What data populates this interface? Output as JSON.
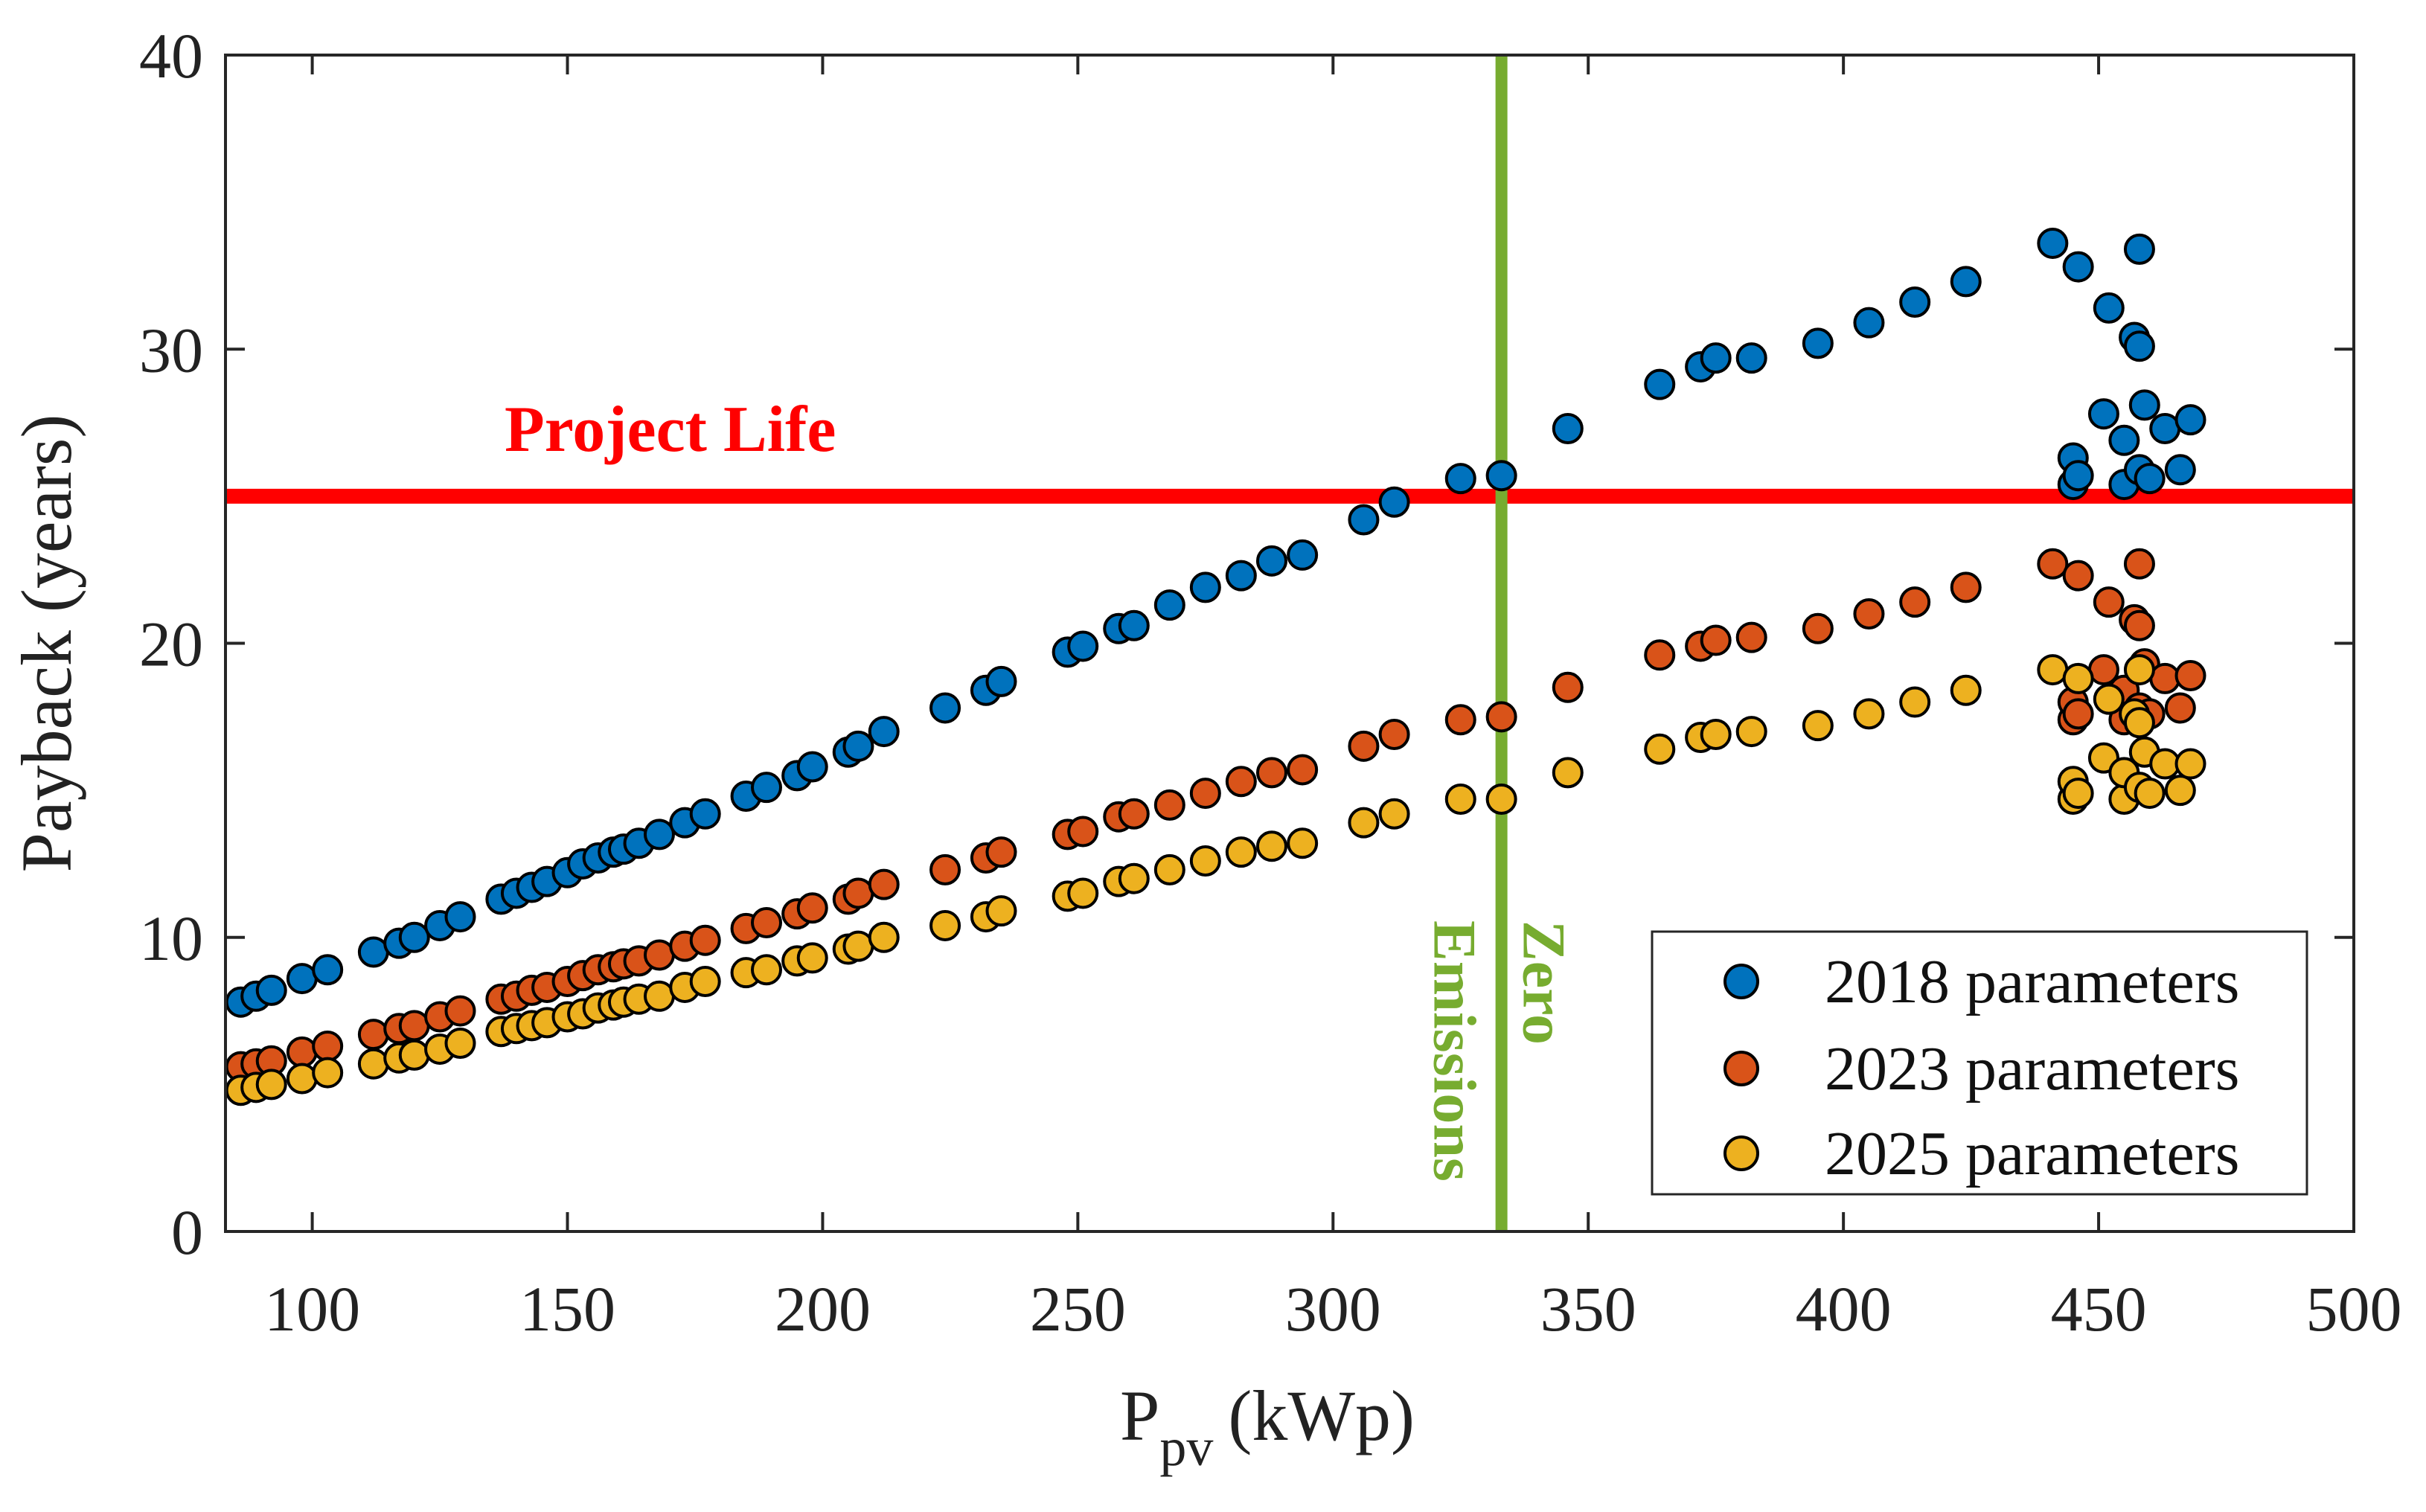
{
  "chart_data": {
    "type": "scatter",
    "xlabel_main": "P",
    "xlabel_sub": "pv",
    "xlabel_unit": "(kWp)",
    "ylabel": "Payback (years)",
    "xlim": [
      83,
      500
    ],
    "ylim": [
      0,
      40
    ],
    "xticks": [
      100,
      150,
      200,
      250,
      300,
      350,
      400,
      450,
      500
    ],
    "yticks": [
      0,
      10,
      20,
      30,
      40
    ],
    "grid": false,
    "legend_position": "bottom-right",
    "reference_lines": [
      {
        "orientation": "horizontal",
        "value": 25,
        "label": "Project Life",
        "color": "#ff0000"
      },
      {
        "orientation": "vertical",
        "value": 333,
        "label_line1": "Zero",
        "label_line2": "Emissions",
        "color": "#77ac30"
      }
    ],
    "series": [
      {
        "name": "2018 parameters",
        "color": "#0072bd",
        "points": [
          [
            86,
            7.8
          ],
          [
            89,
            8.0
          ],
          [
            92,
            8.2
          ],
          [
            98,
            8.6
          ],
          [
            103,
            8.9
          ],
          [
            112,
            9.5
          ],
          [
            117,
            9.8
          ],
          [
            120,
            10.0
          ],
          [
            125,
            10.4
          ],
          [
            129,
            10.7
          ],
          [
            137,
            11.3
          ],
          [
            140,
            11.5
          ],
          [
            143,
            11.7
          ],
          [
            146,
            11.9
          ],
          [
            150,
            12.2
          ],
          [
            153,
            12.5
          ],
          [
            156,
            12.7
          ],
          [
            159,
            12.9
          ],
          [
            161,
            13.0
          ],
          [
            164,
            13.2
          ],
          [
            168,
            13.5
          ],
          [
            173,
            13.9
          ],
          [
            177,
            14.2
          ],
          [
            185,
            14.8
          ],
          [
            189,
            15.1
          ],
          [
            195,
            15.5
          ],
          [
            198,
            15.8
          ],
          [
            205,
            16.3
          ],
          [
            207,
            16.5
          ],
          [
            212,
            17.0
          ],
          [
            224,
            17.8
          ],
          [
            232,
            18.4
          ],
          [
            235,
            18.7
          ],
          [
            248,
            19.7
          ],
          [
            251,
            19.9
          ],
          [
            258,
            20.5
          ],
          [
            261,
            20.6
          ],
          [
            268,
            21.3
          ],
          [
            275,
            21.9
          ],
          [
            282,
            22.3
          ],
          [
            288,
            22.8
          ],
          [
            294,
            23.0
          ],
          [
            306,
            24.2
          ],
          [
            312,
            24.8
          ],
          [
            325,
            25.6
          ],
          [
            333,
            25.7
          ],
          [
            346,
            27.3
          ],
          [
            364,
            28.8
          ],
          [
            372,
            29.4
          ],
          [
            375,
            29.7
          ],
          [
            382,
            29.7
          ],
          [
            395,
            30.2
          ],
          [
            405,
            30.9
          ],
          [
            414,
            31.6
          ],
          [
            424,
            32.3
          ],
          [
            441,
            33.6
          ],
          [
            445,
            25.4
          ],
          [
            445,
            26.3
          ],
          [
            446,
            25.7
          ],
          [
            446,
            32.8
          ],
          [
            451,
            27.8
          ],
          [
            452,
            31.4
          ],
          [
            455,
            25.4
          ],
          [
            455,
            26.9
          ],
          [
            457,
            30.4
          ],
          [
            458,
            25.9
          ],
          [
            458,
            30.1
          ],
          [
            458,
            33.4
          ],
          [
            459,
            28.1
          ],
          [
            460,
            25.6
          ],
          [
            463,
            27.3
          ],
          [
            466,
            25.9
          ],
          [
            468,
            27.6
          ]
        ]
      },
      {
        "name": "2023 parameters",
        "color": "#d95319",
        "points": [
          [
            86,
            5.6
          ],
          [
            89,
            5.7
          ],
          [
            92,
            5.8
          ],
          [
            98,
            6.1
          ],
          [
            103,
            6.3
          ],
          [
            112,
            6.7
          ],
          [
            117,
            6.9
          ],
          [
            120,
            7.0
          ],
          [
            125,
            7.3
          ],
          [
            129,
            7.5
          ],
          [
            137,
            7.9
          ],
          [
            140,
            8.0
          ],
          [
            143,
            8.2
          ],
          [
            146,
            8.3
          ],
          [
            150,
            8.5
          ],
          [
            153,
            8.7
          ],
          [
            156,
            8.9
          ],
          [
            159,
            9.0
          ],
          [
            161,
            9.1
          ],
          [
            164,
            9.2
          ],
          [
            168,
            9.4
          ],
          [
            173,
            9.7
          ],
          [
            177,
            9.9
          ],
          [
            185,
            10.3
          ],
          [
            189,
            10.5
          ],
          [
            195,
            10.8
          ],
          [
            198,
            11.0
          ],
          [
            205,
            11.3
          ],
          [
            207,
            11.5
          ],
          [
            212,
            11.8
          ],
          [
            224,
            12.3
          ],
          [
            232,
            12.7
          ],
          [
            235,
            12.9
          ],
          [
            248,
            13.5
          ],
          [
            251,
            13.6
          ],
          [
            258,
            14.1
          ],
          [
            261,
            14.2
          ],
          [
            268,
            14.5
          ],
          [
            275,
            14.9
          ],
          [
            282,
            15.3
          ],
          [
            288,
            15.6
          ],
          [
            294,
            15.7
          ],
          [
            306,
            16.5
          ],
          [
            312,
            16.9
          ],
          [
            325,
            17.4
          ],
          [
            333,
            17.5
          ],
          [
            346,
            18.5
          ],
          [
            364,
            19.6
          ],
          [
            372,
            19.9
          ],
          [
            375,
            20.1
          ],
          [
            382,
            20.2
          ],
          [
            395,
            20.5
          ],
          [
            405,
            21.0
          ],
          [
            414,
            21.4
          ],
          [
            424,
            21.9
          ],
          [
            441,
            22.7
          ],
          [
            445,
            17.4
          ],
          [
            445,
            18.0
          ],
          [
            446,
            17.6
          ],
          [
            446,
            22.3
          ],
          [
            451,
            19.1
          ],
          [
            452,
            21.4
          ],
          [
            455,
            17.4
          ],
          [
            455,
            18.4
          ],
          [
            457,
            20.8
          ],
          [
            458,
            17.8
          ],
          [
            458,
            20.6
          ],
          [
            458,
            22.7
          ],
          [
            459,
            19.3
          ],
          [
            460,
            17.6
          ],
          [
            463,
            18.8
          ],
          [
            466,
            17.8
          ],
          [
            468,
            18.9
          ]
        ]
      },
      {
        "name": "2025 parameters",
        "color": "#edb120",
        "points": [
          [
            86,
            4.8
          ],
          [
            89,
            4.9
          ],
          [
            92,
            5.0
          ],
          [
            98,
            5.2
          ],
          [
            103,
            5.4
          ],
          [
            112,
            5.7
          ],
          [
            117,
            5.9
          ],
          [
            120,
            6.0
          ],
          [
            125,
            6.2
          ],
          [
            129,
            6.4
          ],
          [
            137,
            6.8
          ],
          [
            140,
            6.9
          ],
          [
            143,
            7.0
          ],
          [
            146,
            7.1
          ],
          [
            150,
            7.3
          ],
          [
            153,
            7.4
          ],
          [
            156,
            7.6
          ],
          [
            159,
            7.7
          ],
          [
            161,
            7.8
          ],
          [
            164,
            7.9
          ],
          [
            168,
            8.0
          ],
          [
            173,
            8.3
          ],
          [
            177,
            8.5
          ],
          [
            185,
            8.8
          ],
          [
            189,
            8.9
          ],
          [
            195,
            9.2
          ],
          [
            198,
            9.3
          ],
          [
            205,
            9.6
          ],
          [
            207,
            9.7
          ],
          [
            212,
            10.0
          ],
          [
            224,
            10.4
          ],
          [
            232,
            10.7
          ],
          [
            235,
            10.9
          ],
          [
            248,
            11.4
          ],
          [
            251,
            11.5
          ],
          [
            258,
            11.9
          ],
          [
            261,
            12.0
          ],
          [
            268,
            12.3
          ],
          [
            275,
            12.6
          ],
          [
            282,
            12.9
          ],
          [
            288,
            13.1
          ],
          [
            294,
            13.2
          ],
          [
            306,
            13.9
          ],
          [
            312,
            14.2
          ],
          [
            325,
            14.7
          ],
          [
            333,
            14.7
          ],
          [
            346,
            15.6
          ],
          [
            364,
            16.4
          ],
          [
            372,
            16.8
          ],
          [
            375,
            16.9
          ],
          [
            382,
            17.0
          ],
          [
            395,
            17.2
          ],
          [
            405,
            17.6
          ],
          [
            414,
            18.0
          ],
          [
            424,
            18.4
          ],
          [
            441,
            19.1
          ],
          [
            445,
            14.7
          ],
          [
            445,
            15.3
          ],
          [
            446,
            14.9
          ],
          [
            446,
            18.8
          ],
          [
            451,
            16.1
          ],
          [
            452,
            18.1
          ],
          [
            455,
            14.7
          ],
          [
            455,
            15.6
          ],
          [
            457,
            17.6
          ],
          [
            458,
            15.1
          ],
          [
            458,
            17.3
          ],
          [
            458,
            19.1
          ],
          [
            459,
            16.3
          ],
          [
            460,
            14.9
          ],
          [
            463,
            15.9
          ],
          [
            466,
            15.0
          ],
          [
            468,
            15.9
          ]
        ]
      }
    ]
  }
}
